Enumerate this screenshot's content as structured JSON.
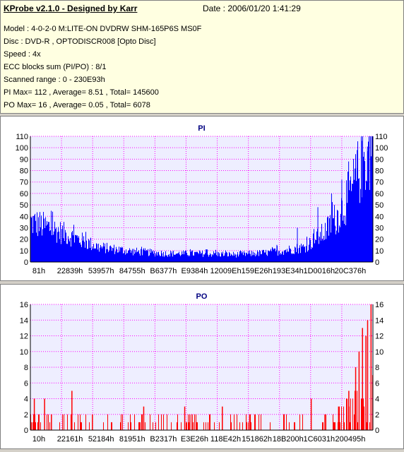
{
  "header": {
    "title": "KProbe v2.1.0 - Designed by Karr",
    "date": "Date : 2006/01/20 1:41:29",
    "lines": [
      "Model : 4-0-2-0 M:LITE-ON DVDRW SHM-165P6S MS0F",
      "Disc : DVD-R , OPTODISCR008 [Opto Disc]",
      "Speed : 4x",
      "ECC blocks sum (PI/PO) : 8/1",
      "Scanned range : 0 - 230E93h",
      "PI Max= 112 , Average= 8.51 , Total= 145600",
      "PO Max= 16 , Average= 0.05 , Total= 6078"
    ]
  },
  "colors": {
    "plot_bg": "#eeeeff",
    "grid": "#ff00ff",
    "series": "#0000ff",
    "series_po": "#ff0000",
    "title": "#000080"
  },
  "chart_data": [
    {
      "type": "bar",
      "title": "PI",
      "ylim": [
        0,
        110
      ],
      "y_ticks": [
        0,
        10,
        20,
        30,
        40,
        50,
        60,
        70,
        80,
        90,
        100,
        110
      ],
      "x_tick_labels": [
        "81h",
        "22839h",
        "53957h",
        "84755h",
        "B6377h",
        "E9384h",
        "12009Eh",
        "159E26h",
        "193E34h",
        "1D0016h",
        "20C376h"
      ],
      "grid": true,
      "x_positions": [
        0.0,
        0.06,
        0.12,
        0.2,
        0.3,
        0.4,
        0.5,
        0.6,
        0.7,
        0.8,
        0.86,
        0.9,
        0.94,
        0.97,
        1.0
      ],
      "envelope": [
        38,
        32,
        24,
        14,
        10,
        8,
        8,
        7,
        9,
        14,
        28,
        45,
        68,
        95,
        110
      ],
      "peaks": [
        [
          0.99,
          112
        ],
        [
          0.985,
          101
        ],
        [
          0.97,
          106
        ],
        [
          0.955,
          98
        ],
        [
          0.93,
          88
        ],
        [
          0.91,
          72
        ],
        [
          0.88,
          60
        ],
        [
          0.84,
          48
        ],
        [
          0.78,
          30
        ],
        [
          0.72,
          15
        ]
      ]
    },
    {
      "type": "bar",
      "title": "PO",
      "ylim": [
        0,
        16
      ],
      "y_ticks": [
        0,
        2,
        4,
        6,
        8,
        10,
        12,
        14,
        16
      ],
      "x_tick_labels": [
        "10h",
        "22161h",
        "52184h",
        "81951h",
        "B2317h",
        "E3E26h",
        "118E42h",
        "151862h",
        "18B200h",
        "1C6031h",
        "200495h"
      ],
      "grid": true,
      "spikes": [
        [
          0.01,
          4
        ],
        [
          0.04,
          4
        ],
        [
          0.06,
          2
        ],
        [
          0.12,
          5
        ],
        [
          0.18,
          2
        ],
        [
          0.33,
          3
        ],
        [
          0.45,
          3
        ],
        [
          0.56,
          3
        ],
        [
          0.64,
          2
        ],
        [
          0.74,
          2
        ],
        [
          0.82,
          4
        ],
        [
          0.86,
          2
        ],
        [
          0.9,
          3
        ],
        [
          0.93,
          5
        ],
        [
          0.95,
          8
        ],
        [
          0.96,
          10
        ],
        [
          0.97,
          13
        ],
        [
          0.98,
          12
        ],
        [
          0.985,
          14
        ],
        [
          0.995,
          16
        ]
      ]
    }
  ]
}
